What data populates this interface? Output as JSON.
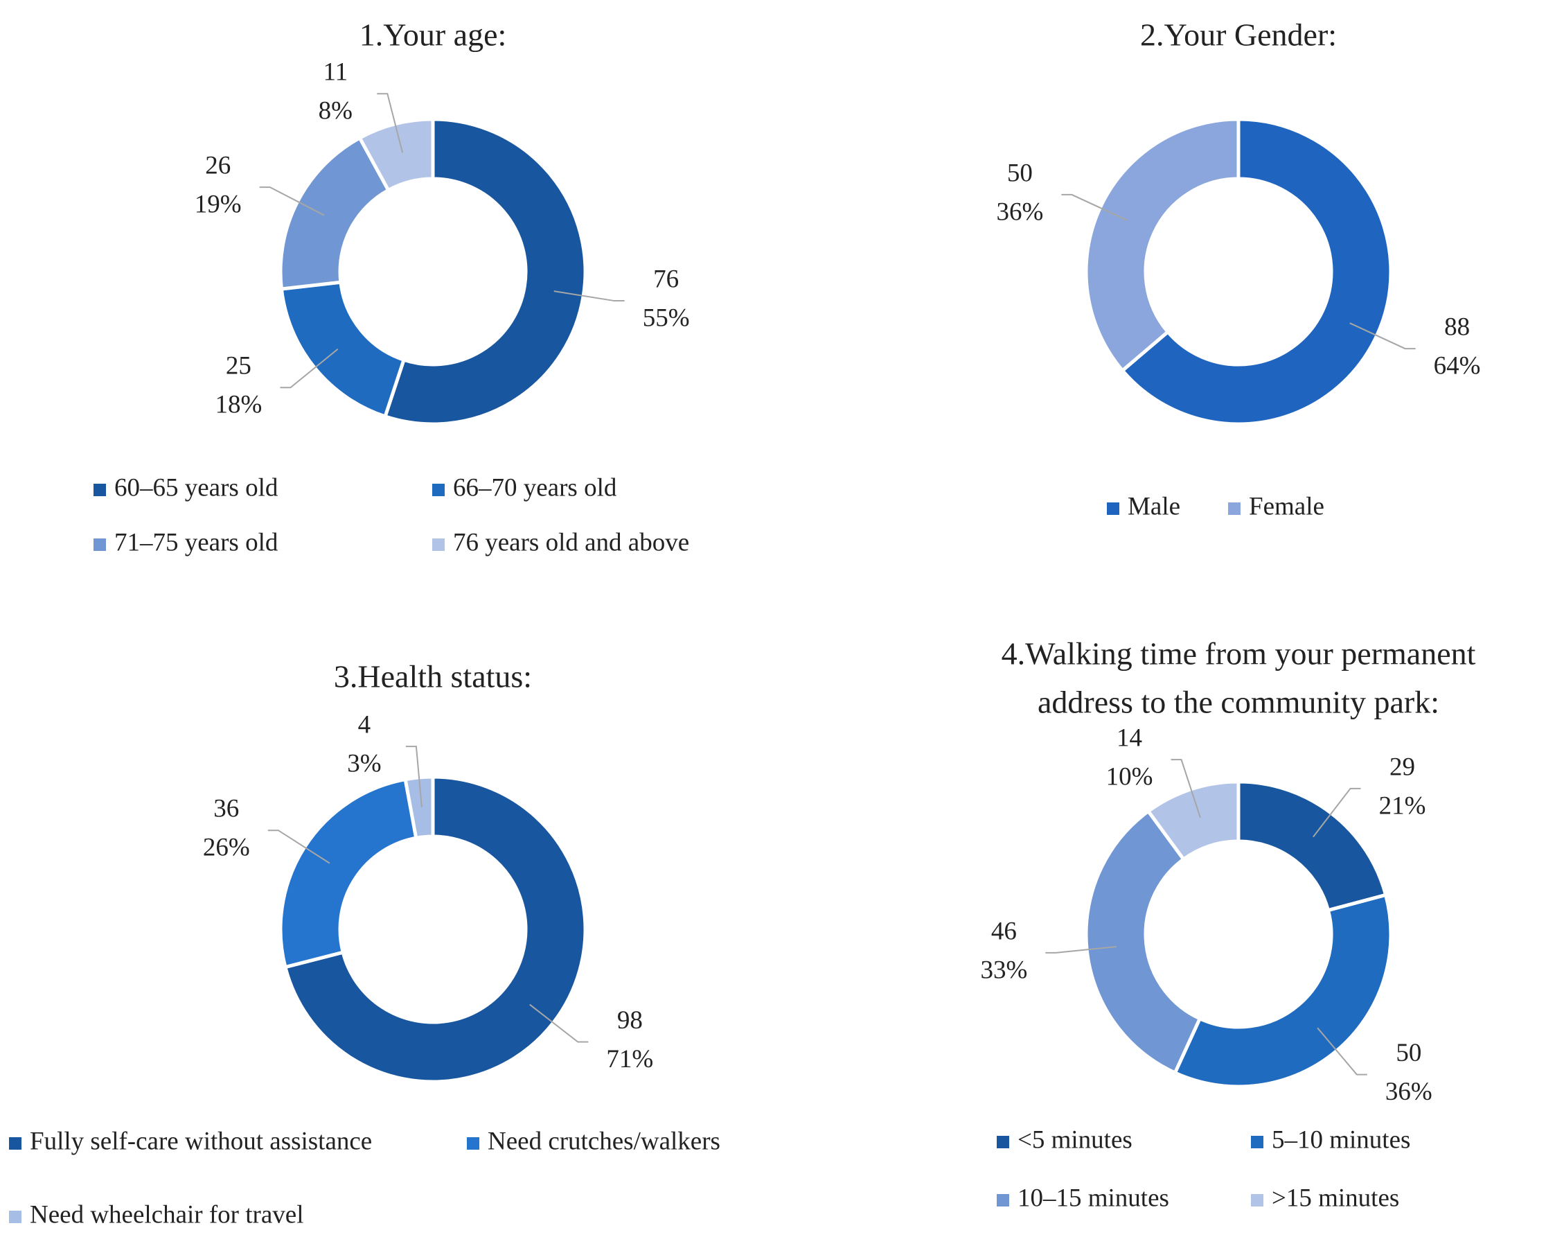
{
  "chart_data": [
    {
      "type": "donut",
      "title": "1.Your age:",
      "categories": [
        "60–65 years old",
        "66–70 years old",
        "71–75 years old",
        "76 years old and above"
      ],
      "values": [
        76,
        25,
        26,
        11
      ],
      "percent_labels": [
        "55%",
        "18%",
        "19%",
        "8%"
      ],
      "colors": [
        "#1857a0",
        "#1f6bc0",
        "#7096d4",
        "#b1c4e8"
      ]
    },
    {
      "type": "donut",
      "title": "2.Your Gender:",
      "categories": [
        "Male",
        "Female"
      ],
      "values": [
        88,
        50
      ],
      "percent_labels": [
        "64%",
        "36%"
      ],
      "colors": [
        "#1f65bf",
        "#8aa6dc"
      ]
    },
    {
      "type": "donut",
      "title": "3.Health status:",
      "categories": [
        "Fully self-care without assistance",
        "Need crutches/walkers",
        "Need wheelchair for travel"
      ],
      "values": [
        98,
        36,
        4
      ],
      "percent_labels": [
        "71%",
        "26%",
        "3%"
      ],
      "colors": [
        "#1857a0",
        "#2575cf",
        "#a6bde6"
      ]
    },
    {
      "type": "donut",
      "title": [
        "4.Walking time from your permanent",
        "address to the community park:"
      ],
      "categories": [
        "<5 minutes",
        "5–10 minutes",
        "10–15 minutes",
        ">15 minutes"
      ],
      "values": [
        29,
        50,
        46,
        14
      ],
      "percent_labels": [
        "21%",
        "36%",
        "33%",
        "10%"
      ],
      "colors": [
        "#1857a0",
        "#1f6bc0",
        "#7096d4",
        "#b1c4e8"
      ]
    }
  ]
}
